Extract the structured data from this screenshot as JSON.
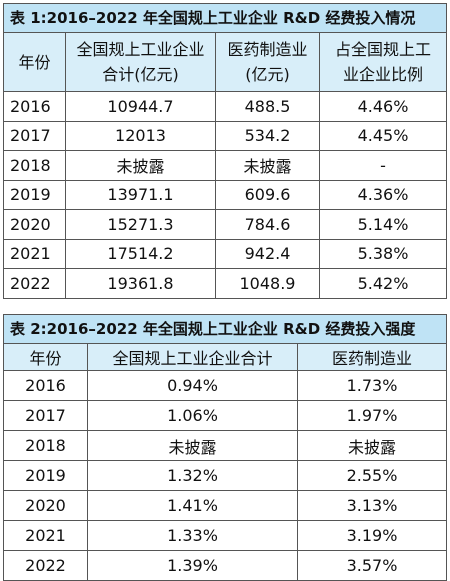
{
  "table1": {
    "title": "表 1:2016–2022 年全国规上工业企业 R&D 经费投入情况",
    "headers": [
      "年份",
      "全国规上工业企业合计(亿元)",
      "医药制造业(亿元)",
      "占全国规上工业企业比例"
    ],
    "rows": [
      [
        "2016",
        "10944.7",
        "488.5",
        "4.46%"
      ],
      [
        "2017",
        "12013",
        "534.2",
        "4.45%"
      ],
      [
        "2018",
        "未披露",
        "未披露",
        "-"
      ],
      [
        "2019",
        "13971.1",
        "609.6",
        "4.36%"
      ],
      [
        "2020",
        "15271.3",
        "784.6",
        "5.14%"
      ],
      [
        "2021",
        "17514.2",
        "942.4",
        "5.38%"
      ],
      [
        "2022",
        "19361.8",
        "1048.9",
        "5.42%"
      ]
    ]
  },
  "table2": {
    "title": "表 2:2016–2022 年全国规上工业企业 R&D 经费投入强度",
    "headers": [
      "年份",
      "全国规上工业企业合计",
      "医药制造业"
    ],
    "rows": [
      [
        "2016",
        "0.94%",
        "1.73%"
      ],
      [
        "2017",
        "1.06%",
        "1.97%"
      ],
      [
        "2018",
        "未披露",
        "未披露"
      ],
      [
        "2019",
        "1.32%",
        "2.55%"
      ],
      [
        "2020",
        "1.41%",
        "3.13%"
      ],
      [
        "2021",
        "1.33%",
        "3.19%"
      ],
      [
        "2022",
        "1.39%",
        "3.57%"
      ]
    ]
  }
}
